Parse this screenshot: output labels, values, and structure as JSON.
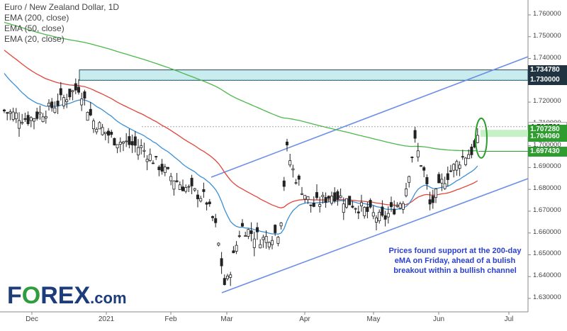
{
  "chart_data": {
    "type": "candlestick",
    "title": "Euro / New Zealand Dollar, 1D",
    "legend": [
      "EMA (200, close)",
      "EMA (50, close)",
      "EMA (20, close)"
    ],
    "y_ticks": [
      "1.760000",
      "1.750000",
      "1.740000",
      "1.730000",
      "1.720000",
      "1.710000",
      "1.700000",
      "1.690000",
      "1.680000",
      "1.670000",
      "1.660000",
      "1.650000",
      "1.640000",
      "1.630000"
    ],
    "x_ticks": [
      "Dec",
      "2021",
      "Feb",
      "Mar",
      "Apr",
      "May",
      "Jun",
      "Jul"
    ],
    "ylim": [
      1.628,
      1.762
    ],
    "price_labels": [
      {
        "text": "1.734780",
        "value": 1.73478,
        "style": "dark"
      },
      {
        "text": "1.730000",
        "value": 1.73,
        "style": "dark"
      },
      {
        "text": "1.708730",
        "value": 1.70873,
        "style": "grey"
      },
      {
        "text": "1.707280",
        "value": 1.70728,
        "style": "green"
      },
      {
        "text": "1.704060",
        "value": 1.70406,
        "style": "green"
      },
      {
        "text": "1.697430",
        "value": 1.69743,
        "style": "green"
      }
    ],
    "series": [
      {
        "name": "EMA (200, close)",
        "color": "#4cb84c"
      },
      {
        "name": "EMA (50, close)",
        "color": "#e0453a"
      },
      {
        "name": "EMA (20, close)",
        "color": "#3a8fd6"
      }
    ]
  },
  "annotation": "Prices found support at the 200-day eMA on Friday, ahead of a bulish breakout within a bullish channel",
  "logo": {
    "part1": "F",
    "part2": "O",
    "part3": "REX",
    "part4": ".com"
  }
}
